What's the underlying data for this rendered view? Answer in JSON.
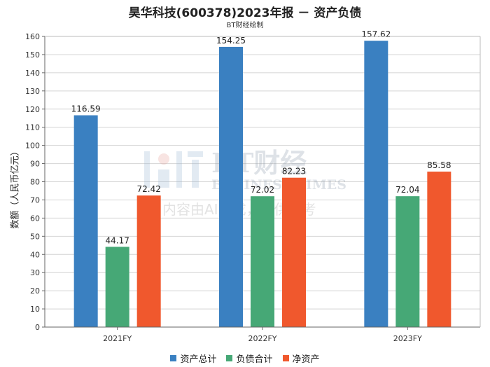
{
  "chart_data": {
    "type": "bar",
    "title": "昊华科技(600378)2023年报 － 资产负债",
    "subtitle": "BT财经绘制",
    "xlabel": "",
    "ylabel": "数额（人民币亿元）",
    "categories": [
      "2021FY",
      "2022FY",
      "2023FY"
    ],
    "series": [
      {
        "name": "资产总计",
        "color": "#3a80c1",
        "values": [
          116.59,
          154.25,
          157.62
        ]
      },
      {
        "name": "负债合计",
        "color": "#46a876",
        "values": [
          44.17,
          72.02,
          72.04
        ]
      },
      {
        "name": "净资产",
        "color": "#f0582d",
        "values": [
          72.42,
          82.23,
          85.58
        ]
      }
    ],
    "ylim": [
      0,
      160
    ],
    "yticks": [
      0,
      10,
      20,
      30,
      40,
      50,
      60,
      70,
      80,
      90,
      100,
      110,
      120,
      130,
      140,
      150,
      160
    ],
    "grid": true,
    "legend_position": "bottom"
  },
  "watermark": {
    "brand": "BT财经",
    "brand_en": "BUSINESS TIMES",
    "note": "内容由AI生成，仅供参考"
  }
}
